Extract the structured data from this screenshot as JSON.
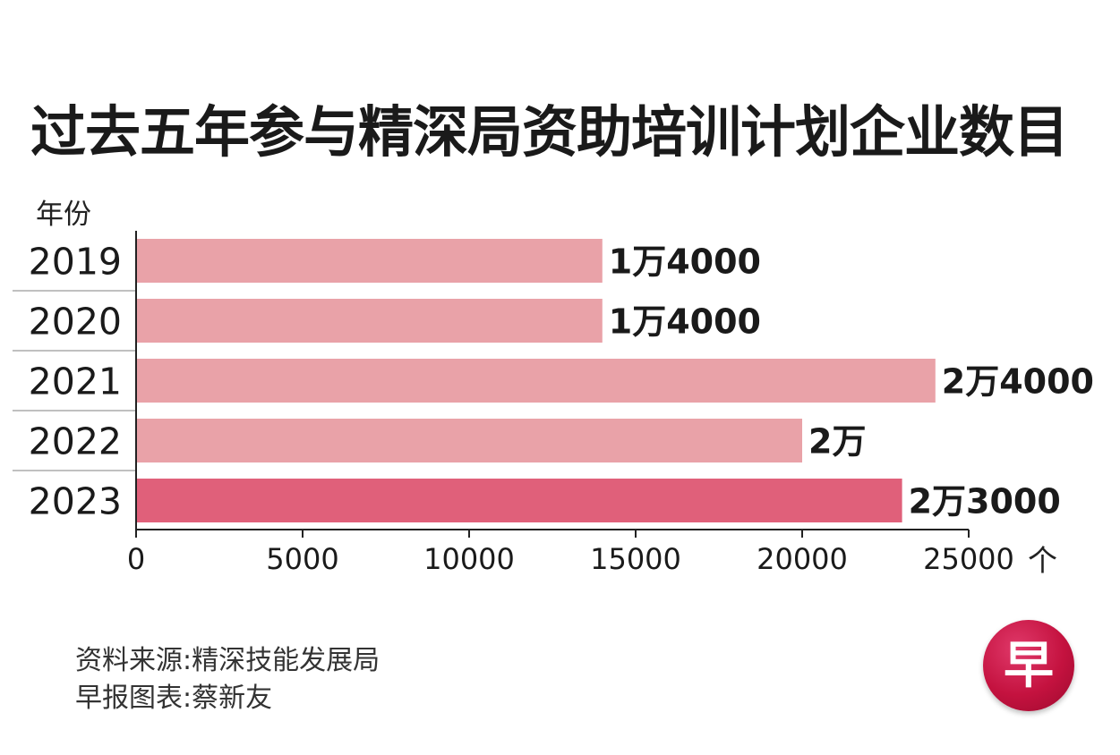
{
  "header": {
    "title": "过去五年参与精深局资助培训计划企业数目"
  },
  "chart_data": {
    "type": "bar",
    "orientation": "horizontal",
    "title": "过去五年参与精深局资助培训计划企业数目",
    "ylabel": "年份",
    "xunit": "个",
    "categories": [
      "2019",
      "2020",
      "2021",
      "2022",
      "2023"
    ],
    "values": [
      14000,
      14000,
      24000,
      20000,
      23000
    ],
    "data_labels": [
      "1万4000",
      "1万4000",
      "2万4000",
      "2万",
      "2万3000"
    ],
    "xlim": [
      0,
      25000
    ],
    "xticks": [
      "0",
      "5000",
      "10000",
      "15000",
      "20000",
      "25000"
    ],
    "colors": {
      "bar": "#e9a2a8",
      "highlight_bar": "#e0607a",
      "axis": "#222222"
    },
    "highlight_category": "2023"
  },
  "footer": {
    "source": "资料来源:精深技能发展局",
    "credit": "早报图表:蔡新友"
  },
  "logo": {
    "icon": "zaobao-logo-icon",
    "text": "早"
  }
}
